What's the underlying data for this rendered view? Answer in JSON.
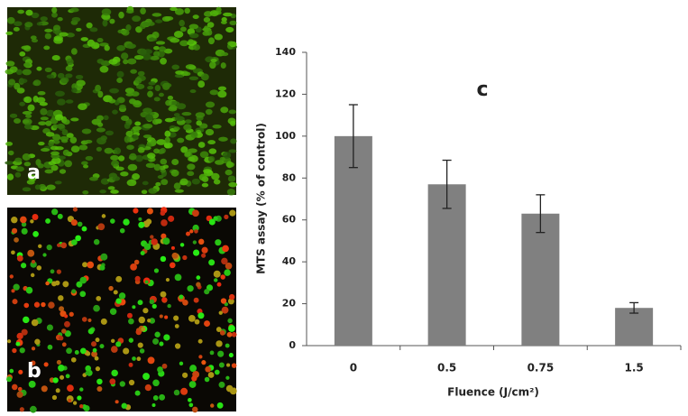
{
  "panels": [
    {
      "label": "a"
    },
    {
      "label": "b"
    }
  ],
  "chart_data": {
    "type": "bar",
    "annotation": "c",
    "x_label": "Fluence (J/cm²)",
    "y_label": "MTS assay (% of control)",
    "categories": [
      "0",
      "0.5",
      "0.75",
      "1.5"
    ],
    "values": [
      100,
      77,
      63,
      18
    ],
    "errors": [
      15,
      11.5,
      9,
      2.5
    ],
    "color": "#808080",
    "ylim": [
      0,
      140
    ],
    "yticks": [
      0,
      20,
      40,
      60,
      80,
      100,
      120,
      140
    ],
    "grid": false
  }
}
